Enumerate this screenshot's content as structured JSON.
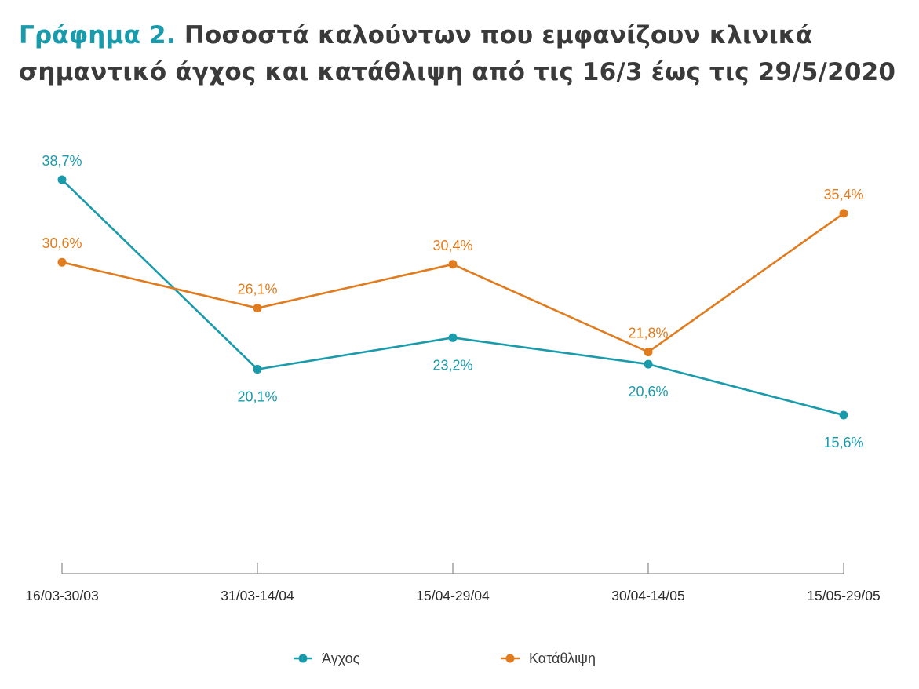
{
  "title": {
    "prefix": "Γράφημα 2.",
    "line1": "Ποσοστά καλούντων που εμφανίζουν κλινικά",
    "line2": "σημαντικό άγχος και κατάθλιψη από τις 16/3 έως τις 29/5/2020"
  },
  "chart_data": {
    "type": "line",
    "categories": [
      "16/03-30/03",
      "31/03-14/04",
      "15/04-29/04",
      "30/04-14/05",
      "15/05-29/05"
    ],
    "series": [
      {
        "name": "Άγχος",
        "color": "#1a9bab",
        "values": [
          38.7,
          20.1,
          23.2,
          20.6,
          15.6
        ],
        "labels": [
          "38,7%",
          "20,1%",
          "23,2%",
          "20,6%",
          "15,6%"
        ],
        "label_position": [
          "above",
          "below",
          "below",
          "below",
          "below"
        ]
      },
      {
        "name": "Κατάθλιψη",
        "color": "#e07b1e",
        "values": [
          30.6,
          26.1,
          30.4,
          21.8,
          35.4
        ],
        "labels": [
          "30,6%",
          "26,1%",
          "30,4%",
          "21,8%",
          "35,4%"
        ],
        "label_position": [
          "above",
          "above",
          "above",
          "above",
          "above"
        ]
      }
    ],
    "ylim": [
      0,
      40
    ],
    "grid": false,
    "y_axis_visible": false,
    "legend": "bottom-center"
  }
}
